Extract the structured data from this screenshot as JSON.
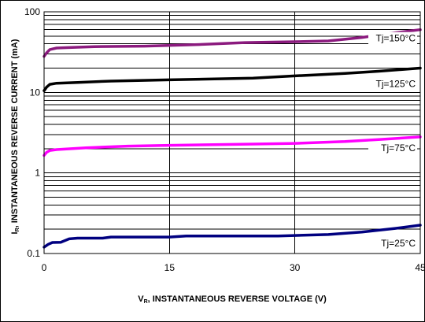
{
  "chart_data": {
    "type": "line",
    "xlabel": "V",
    "xlabel_sub": "R",
    "xlabel_rest": ", INSTANTANEOUS REVERSE VOLTAGE (V)",
    "ylabel": "I",
    "ylabel_sub": "R",
    "ylabel_rest": ", INSTANTANEOUS REVERSE CURRENT (mA)",
    "xlim": [
      0,
      45
    ],
    "ylim": [
      0.1,
      100
    ],
    "yscale": "log",
    "x_ticks": [
      0,
      15,
      30,
      45
    ],
    "x_tick_labels": [
      "0",
      "15",
      "30",
      "45"
    ],
    "y_ticks": [
      0.1,
      1,
      10,
      100
    ],
    "y_tick_labels": [
      "0.1",
      "1",
      "10",
      "100"
    ],
    "grid": true,
    "series": [
      {
        "name": "Tj=150°C",
        "color": "#8b1a7e",
        "points": [
          [
            0,
            28
          ],
          [
            0.3,
            31
          ],
          [
            0.7,
            34
          ],
          [
            1.5,
            35.5
          ],
          [
            3,
            36
          ],
          [
            6,
            37
          ],
          [
            12,
            37.5
          ],
          [
            18,
            39
          ],
          [
            24,
            41.5
          ],
          [
            30,
            42.5
          ],
          [
            34,
            43.5
          ],
          [
            38,
            48
          ],
          [
            42,
            55
          ],
          [
            45,
            60
          ]
        ]
      },
      {
        "name": "Tj=125°C",
        "color": "#000000",
        "points": [
          [
            0,
            10.5
          ],
          [
            0.3,
            11.6
          ],
          [
            0.7,
            12.6
          ],
          [
            1.5,
            13
          ],
          [
            4,
            13.3
          ],
          [
            8,
            13.8
          ],
          [
            15,
            14.3
          ],
          [
            25,
            15
          ],
          [
            30,
            16
          ],
          [
            36,
            17.2
          ],
          [
            40,
            18.3
          ],
          [
            45,
            20
          ]
        ]
      },
      {
        "name": "Tj=75°C",
        "color": "#ff00ff",
        "points": [
          [
            0,
            1.65
          ],
          [
            0.3,
            1.8
          ],
          [
            0.7,
            1.9
          ],
          [
            1.5,
            1.95
          ],
          [
            5,
            2.05
          ],
          [
            10,
            2.15
          ],
          [
            15,
            2.2
          ],
          [
            25,
            2.28
          ],
          [
            30,
            2.33
          ],
          [
            36,
            2.45
          ],
          [
            40,
            2.6
          ],
          [
            45,
            2.8
          ]
        ]
      },
      {
        "name": "Tj=25°C",
        "color": "#000080",
        "points": [
          [
            0,
            0.12
          ],
          [
            0.5,
            0.13
          ],
          [
            1,
            0.137
          ],
          [
            2,
            0.138
          ],
          [
            3,
            0.152
          ],
          [
            4,
            0.155
          ],
          [
            7,
            0.155
          ],
          [
            8,
            0.16
          ],
          [
            15,
            0.16
          ],
          [
            17,
            0.165
          ],
          [
            28,
            0.165
          ],
          [
            34,
            0.172
          ],
          [
            38,
            0.185
          ],
          [
            42,
            0.205
          ],
          [
            45,
            0.225
          ]
        ]
      }
    ]
  }
}
